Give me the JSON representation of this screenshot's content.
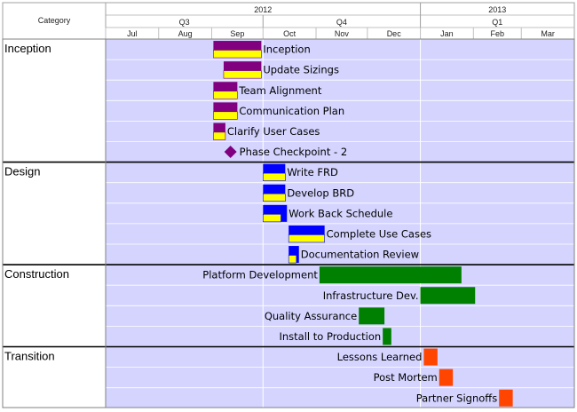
{
  "header": {
    "category_label": "Category",
    "years": [
      {
        "label": "2012",
        "from": "2012-07-01",
        "to": "2012-12-31"
      },
      {
        "label": "2013",
        "from": "2013-01-01",
        "to": "2013-03-31"
      }
    ],
    "quarters": [
      {
        "label": "Q3",
        "from": "2012-07-01",
        "to": "2012-09-30"
      },
      {
        "label": "Q4",
        "from": "2012-10-01",
        "to": "2012-12-31"
      },
      {
        "label": "Q1",
        "from": "2013-01-01",
        "to": "2013-03-31"
      }
    ],
    "months": [
      {
        "label": "Jul",
        "from": "2012-07-01"
      },
      {
        "label": "Aug",
        "from": "2012-08-01"
      },
      {
        "label": "Sep",
        "from": "2012-09-01"
      },
      {
        "label": "Oct",
        "from": "2012-10-01"
      },
      {
        "label": "Nov",
        "from": "2012-11-01"
      },
      {
        "label": "Dec",
        "from": "2012-12-01"
      },
      {
        "label": "Jan",
        "from": "2013-01-01"
      },
      {
        "label": "Feb",
        "from": "2013-02-01"
      },
      {
        "label": "Mar",
        "from": "2013-03-01"
      }
    ]
  },
  "chart_data": {
    "type": "gantt",
    "x_range": [
      "2012-07-01",
      "2013-04-01"
    ],
    "colors": {
      "background": "#d4d4ff",
      "gridline": "#ffffff",
      "progress": "#ffff00",
      "inception": "#800080",
      "design": "#0000ff",
      "construction": "#008000",
      "transition": "#ff4500"
    },
    "phases": [
      {
        "name": "Inception",
        "color": "#800080",
        "tasks": [
          {
            "name": "Inception",
            "start": "2012-09-02",
            "end": "2012-09-29",
            "progress": 1.0
          },
          {
            "name": "Update Sizings",
            "start": "2012-09-08",
            "end": "2012-09-29",
            "progress": 1.0
          },
          {
            "name": "Team Alignment",
            "start": "2012-09-02",
            "end": "2012-09-15",
            "progress": 1.0
          },
          {
            "name": "Communication Plan",
            "start": "2012-09-02",
            "end": "2012-09-15",
            "progress": 1.0
          },
          {
            "name": "Clarify User Cases",
            "start": "2012-09-02",
            "end": "2012-09-08",
            "progress": 1.0
          },
          {
            "name": "Phase Checkpoint - 2",
            "start": "2012-09-12",
            "end": "2012-09-12",
            "milestone": true
          }
        ]
      },
      {
        "name": "Design",
        "color": "#0000ff",
        "tasks": [
          {
            "name": "Write FRD",
            "start": "2012-10-01",
            "end": "2012-10-13",
            "progress": 1.0
          },
          {
            "name": "Develop BRD",
            "start": "2012-10-01",
            "end": "2012-10-13",
            "progress": 1.0
          },
          {
            "name": "Work Back Schedule",
            "start": "2012-10-01",
            "end": "2012-10-14",
            "progress": 0.75
          },
          {
            "name": "Complete Use Cases",
            "start": "2012-10-16",
            "end": "2012-11-05",
            "progress": 1.0
          },
          {
            "name": "Documentation Review",
            "start": "2012-10-16",
            "end": "2012-10-21",
            "progress": 0.75
          }
        ]
      },
      {
        "name": "Construction",
        "color": "#008000",
        "tasks": [
          {
            "name": "Platform Development",
            "start": "2012-11-03",
            "end": "2013-01-24",
            "progress": 0
          },
          {
            "name": "Infrastructure Dev.",
            "start": "2013-01-01",
            "end": "2013-02-01",
            "progress": 0
          },
          {
            "name": "Quality Assurance",
            "start": "2012-11-26",
            "end": "2012-12-10",
            "progress": 0
          },
          {
            "name": "Install to Production",
            "start": "2012-12-10",
            "end": "2012-12-14",
            "progress": 0
          }
        ]
      },
      {
        "name": "Transition",
        "color": "#ff4500",
        "tasks": [
          {
            "name": "Lessons Learned",
            "start": "2013-01-03",
            "end": "2013-01-10",
            "progress": 0
          },
          {
            "name": "Post Mortem",
            "start": "2013-01-12",
            "end": "2013-01-19",
            "progress": 0
          },
          {
            "name": "Partner Signoffs",
            "start": "2013-02-16",
            "end": "2013-02-23",
            "progress": 0
          }
        ]
      }
    ]
  }
}
